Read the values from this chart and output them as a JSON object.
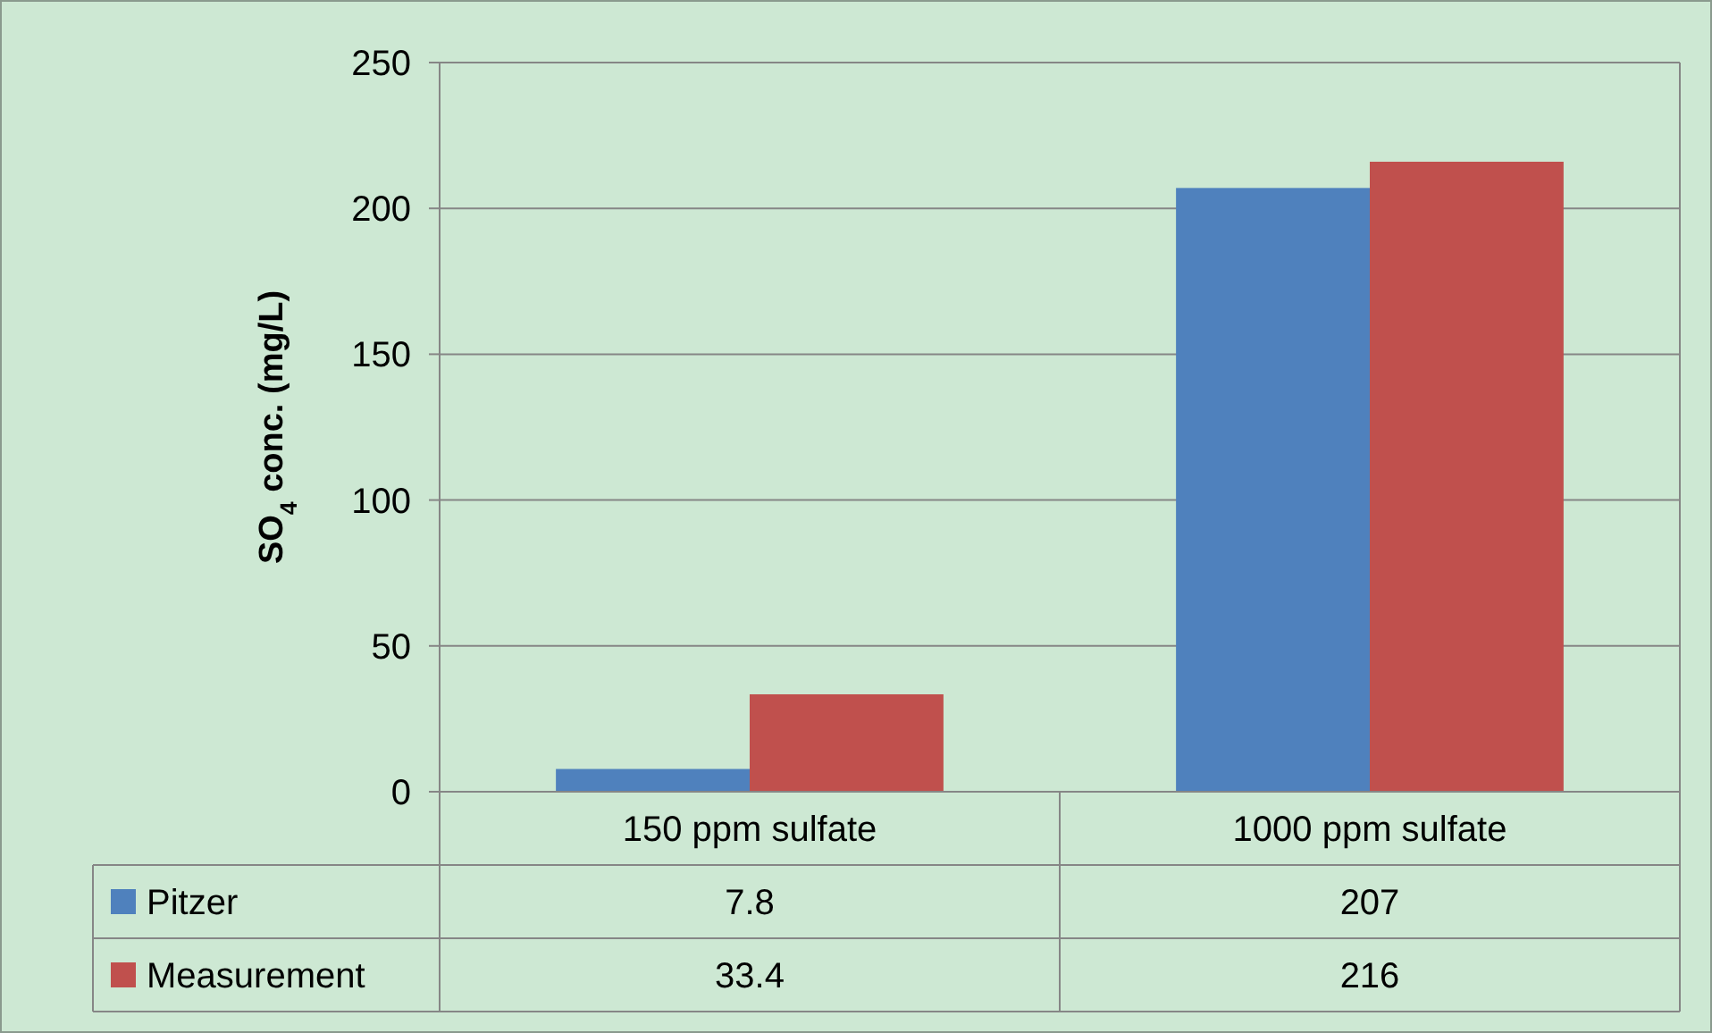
{
  "chart_data": {
    "type": "bar",
    "ylabel": "SO$_{4}$ conc. (mg/L)",
    "categories": [
      "150 ppm sulfate",
      "1000 ppm sulfate"
    ],
    "series": [
      {
        "name": "Pitzer",
        "color": "#4f81bd",
        "values": [
          7.8,
          207
        ]
      },
      {
        "name": "Measurement",
        "color": "#c0504d",
        "values": [
          33.4,
          216
        ]
      }
    ],
    "ylim": [
      0,
      250
    ],
    "yticks": [
      0,
      50,
      100,
      150,
      200,
      250
    ],
    "grid": "y",
    "legend": "bottom",
    "data_labels": true
  }
}
